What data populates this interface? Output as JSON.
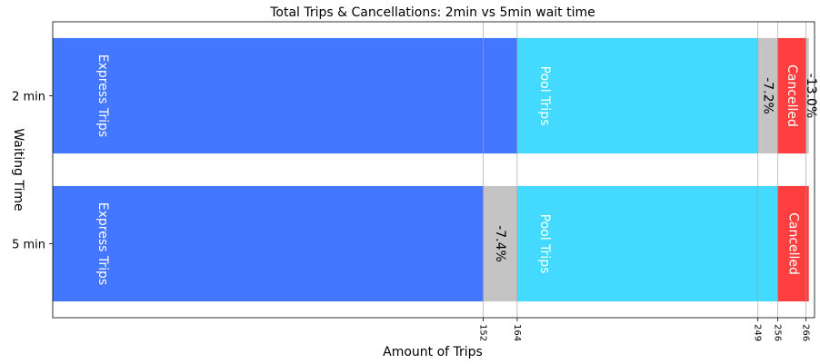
{
  "chart_data": {
    "type": "bar",
    "orientation": "horizontal",
    "stacked": true,
    "title": "Total Trips & Cancellations: 2min vs 5min wait time",
    "xlabel": "Amount of Trips",
    "ylabel": "Waiting Time",
    "xlim": [
      0,
      269
    ],
    "grid": "x",
    "xticks": [
      152,
      164,
      249,
      256,
      266
    ],
    "categories": [
      "2 min",
      "5 min"
    ],
    "bars": [
      {
        "category": "2 min",
        "segments": [
          {
            "label": "Express Trips",
            "start": 0,
            "end": 164,
            "color": "#4477ff",
            "text_color": "#ffffff"
          },
          {
            "label": "Pool Trips",
            "start": 164,
            "end": 249,
            "color": "#44d9ff",
            "text_color": "#ffffff"
          },
          {
            "label": "-7.2%",
            "start": 249,
            "end": 256,
            "color": "#c4c4c4",
            "text_color": "#000000"
          },
          {
            "label": "Cancelled",
            "start": 256,
            "end": 266,
            "color": "#ff3f3f",
            "text_color": "#ffffff"
          },
          {
            "label": "-13.0%",
            "start": 266,
            "end": 267,
            "color": "#c4c4c4",
            "text_color": "#000000"
          }
        ]
      },
      {
        "category": "5 min",
        "segments": [
          {
            "label": "Express Trips",
            "start": 0,
            "end": 152,
            "color": "#4477ff",
            "text_color": "#ffffff"
          },
          {
            "label": "-7.4%",
            "start": 152,
            "end": 164,
            "color": "#c4c4c4",
            "text_color": "#000000"
          },
          {
            "label": "Pool Trips",
            "start": 164,
            "end": 256,
            "color": "#44d9ff",
            "text_color": "#ffffff"
          },
          {
            "label": "Cancelled",
            "start": 256,
            "end": 267,
            "color": "#ff3f3f",
            "text_color": "#ffffff"
          }
        ]
      }
    ]
  }
}
